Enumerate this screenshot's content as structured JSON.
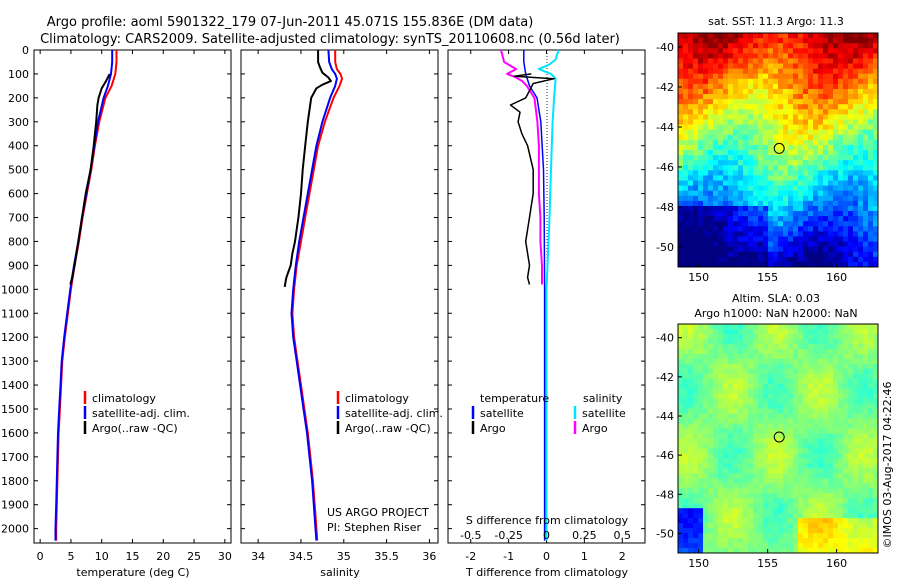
{
  "title_line1": "Argo profile: aoml 5901322_179 07-Jun-2011 45.071S 155.836E (DM data)",
  "title_line2": "Climatology: CARS2009. Satellite-adjusted climatology: synTS_20110608.nc (0.56d later)",
  "watermark": "©IMOS 03-Aug-2017 04:22:46",
  "colors": {
    "clim": "#ff0000",
    "sat": "#0000ff",
    "argo": "#000000",
    "sal_sat": "#00e5ff",
    "sal_argo": "#ff00ff"
  },
  "chart_data": [
    {
      "type": "line",
      "id": "temperature",
      "xlabel": "temperature (deg C)",
      "xlim": [
        -1,
        31
      ],
      "ylim": [
        2060,
        0
      ],
      "xticks": [
        0,
        5,
        10,
        15,
        20,
        25,
        30
      ],
      "yticks": [
        0,
        100,
        200,
        300,
        400,
        500,
        600,
        700,
        800,
        900,
        1000,
        1100,
        1200,
        1300,
        1400,
        1500,
        1600,
        1700,
        1800,
        1900,
        2000
      ],
      "legend": [
        "climatology",
        "satellite-adj. clim.",
        "Argo(..raw -QC)"
      ],
      "series": [
        {
          "name": "climatology",
          "depth": [
            0,
            50,
            100,
            150,
            200,
            300,
            400,
            500,
            600,
            700,
            800,
            900,
            1000,
            1100,
            1200,
            1300,
            1400,
            1500,
            1600,
            1700,
            1800,
            1900,
            2000,
            2050
          ],
          "values": [
            12.4,
            12.4,
            12.2,
            11.6,
            10.6,
            9.6,
            8.9,
            8.3,
            7.6,
            6.9,
            6.3,
            5.6,
            5.0,
            4.5,
            4.0,
            3.6,
            3.4,
            3.2,
            3.0,
            2.9,
            2.8,
            2.7,
            2.6,
            2.6
          ]
        },
        {
          "name": "satellite-adj. clim.",
          "depth": [
            0,
            50,
            100,
            150,
            200,
            300,
            400,
            500,
            600,
            700,
            800,
            900,
            1000,
            1100,
            1200,
            1300,
            1400,
            1500,
            1600,
            1700,
            1800,
            1900,
            2000,
            2050
          ],
          "values": [
            11.7,
            11.7,
            11.5,
            11.0,
            10.3,
            9.4,
            8.8,
            8.2,
            7.5,
            6.8,
            6.2,
            5.5,
            4.9,
            4.4,
            3.9,
            3.5,
            3.3,
            3.1,
            2.9,
            2.8,
            2.7,
            2.6,
            2.5,
            2.5
          ]
        },
        {
          "name": "Argo(..raw -QC)",
          "depth": [
            100,
            130,
            160,
            200,
            230,
            300,
            400,
            500,
            600,
            700,
            800,
            900,
            950,
            980
          ],
          "values": [
            11.3,
            10.7,
            10.0,
            9.5,
            9.3,
            9.1,
            8.7,
            8.2,
            7.4,
            6.8,
            6.2,
            5.6,
            5.2,
            4.9
          ]
        }
      ]
    },
    {
      "type": "line",
      "id": "salinity",
      "xlabel": "salinity",
      "xlim": [
        33.8,
        36.1
      ],
      "ylim": [
        2060,
        0
      ],
      "xticks": [
        34,
        34.5,
        35,
        35.5,
        36
      ],
      "legend": [
        "climatology",
        "satellite-adj. clim.",
        "Argo(..raw -QC)"
      ],
      "annotation": [
        "US ARGO PROJECT",
        "PI: Stephen Riser"
      ],
      "series": [
        {
          "name": "climatology",
          "depth": [
            0,
            50,
            80,
            100,
            120,
            150,
            200,
            300,
            400,
            500,
            600,
            700,
            800,
            900,
            1000,
            1100,
            1200,
            1300,
            1400,
            1500,
            1600,
            1700,
            1800,
            1900,
            2000,
            2050
          ],
          "values": [
            34.9,
            34.9,
            34.92,
            34.96,
            34.98,
            34.95,
            34.88,
            34.78,
            34.7,
            34.65,
            34.6,
            34.55,
            34.5,
            34.45,
            34.42,
            34.4,
            34.42,
            34.46,
            34.5,
            34.54,
            34.58,
            34.61,
            34.64,
            34.66,
            34.68,
            34.69
          ]
        },
        {
          "name": "satellite-adj. clim.",
          "depth": [
            0,
            50,
            80,
            100,
            120,
            150,
            200,
            300,
            400,
            500,
            600,
            700,
            800,
            900,
            1000,
            1100,
            1200,
            1300,
            1400,
            1500,
            1600,
            1700,
            1800,
            1900,
            2000,
            2050
          ],
          "values": [
            34.82,
            34.83,
            34.86,
            34.9,
            34.92,
            34.9,
            34.84,
            34.75,
            34.68,
            34.63,
            34.58,
            34.53,
            34.48,
            34.44,
            34.41,
            34.39,
            34.41,
            34.45,
            34.49,
            34.53,
            34.57,
            34.6,
            34.63,
            34.65,
            34.67,
            34.68
          ]
        },
        {
          "name": "Argo(..raw -QC)",
          "depth": [
            0,
            30,
            50,
            70,
            95,
            115,
            130,
            145,
            160,
            200,
            250,
            300,
            400,
            500,
            600,
            700,
            800,
            850,
            900,
            930,
            950,
            970,
            990
          ],
          "values": [
            34.7,
            34.7,
            34.7,
            34.72,
            34.75,
            34.82,
            34.85,
            34.75,
            34.68,
            34.62,
            34.6,
            34.58,
            34.55,
            34.52,
            34.5,
            34.47,
            34.43,
            34.4,
            34.38,
            34.35,
            34.33,
            34.32,
            34.31
          ]
        }
      ]
    },
    {
      "type": "line",
      "id": "difference",
      "xlabel": "T difference from climatology",
      "x2label": "S difference from climatology",
      "xlim": [
        -2.6,
        2.6
      ],
      "ylim": [
        2060,
        0
      ],
      "xticks": [
        -2,
        -1,
        0,
        1,
        2
      ],
      "x2ticks": [
        "-0.5",
        "-0.25",
        "0",
        "0.25",
        "0.5"
      ],
      "legend_temperature": [
        "temperature",
        "satellite",
        "Argo"
      ],
      "legend_salinity": [
        "salinity",
        "satellite",
        "Argo"
      ],
      "series": [
        {
          "name": "T satellite",
          "depth": [
            0,
            50,
            100,
            150,
            200,
            300,
            500,
            700,
            1000,
            1500,
            2000,
            2050
          ],
          "values": [
            -0.6,
            -0.6,
            -0.55,
            -0.45,
            -0.25,
            -0.15,
            -0.08,
            -0.06,
            -0.05,
            -0.05,
            -0.05,
            -0.05
          ]
        },
        {
          "name": "T Argo",
          "depth": [
            100,
            110,
            120,
            140,
            170,
            200,
            230,
            260,
            300,
            350,
            400,
            500,
            600,
            650,
            700,
            750,
            800,
            850,
            900,
            950,
            980
          ],
          "values": [
            -0.4,
            -0.85,
            0.2,
            -0.35,
            -0.45,
            -0.55,
            -0.95,
            -0.7,
            -0.75,
            -0.65,
            -0.5,
            -0.35,
            -0.35,
            -0.4,
            -0.45,
            -0.5,
            -0.55,
            -0.5,
            -0.45,
            -0.5,
            -0.45
          ]
        },
        {
          "name": "S satellite",
          "depth": [
            0,
            40,
            60,
            80,
            100,
            120,
            200,
            300,
            500,
            700,
            1000,
            1500,
            2000,
            2050
          ],
          "values": [
            0.08,
            0.06,
            0.02,
            -0.05,
            0.03,
            0.06,
            0.05,
            0.04,
            0.03,
            0.02,
            0.0,
            0.0,
            0.0,
            0.0
          ]
        },
        {
          "name": "S Argo",
          "depth": [
            0,
            50,
            80,
            100,
            115,
            130,
            150,
            200,
            300,
            400,
            500,
            600,
            700,
            800,
            900,
            980
          ],
          "values": [
            -0.3,
            -0.28,
            -0.2,
            -0.26,
            -0.2,
            -0.16,
            -0.13,
            -0.08,
            -0.06,
            -0.05,
            -0.05,
            -0.05,
            -0.04,
            -0.04,
            -0.03,
            -0.03
          ]
        }
      ]
    },
    {
      "type": "heatmap",
      "id": "sst_map",
      "title": "sat. SST: 11.3  Argo: 11.3",
      "xlim": [
        148.5,
        163
      ],
      "ylim": [
        -51,
        -39.3
      ],
      "xticks": [
        150,
        155,
        160
      ],
      "yticks": [
        -40,
        -42,
        -44,
        -46,
        -48,
        -50
      ],
      "marker": [
        155.836,
        -45.071
      ]
    },
    {
      "type": "heatmap",
      "id": "sla_map",
      "title_line1": "Altim. SLA: 0.03",
      "title_line2": "Argo h1000: NaN h2000: NaN",
      "xlim": [
        148.5,
        163
      ],
      "ylim": [
        -51,
        -39.3
      ],
      "xticks": [
        150,
        155,
        160
      ],
      "yticks": [
        -40,
        -42,
        -44,
        -46,
        -48,
        -50
      ],
      "marker": [
        155.836,
        -45.071
      ]
    }
  ]
}
